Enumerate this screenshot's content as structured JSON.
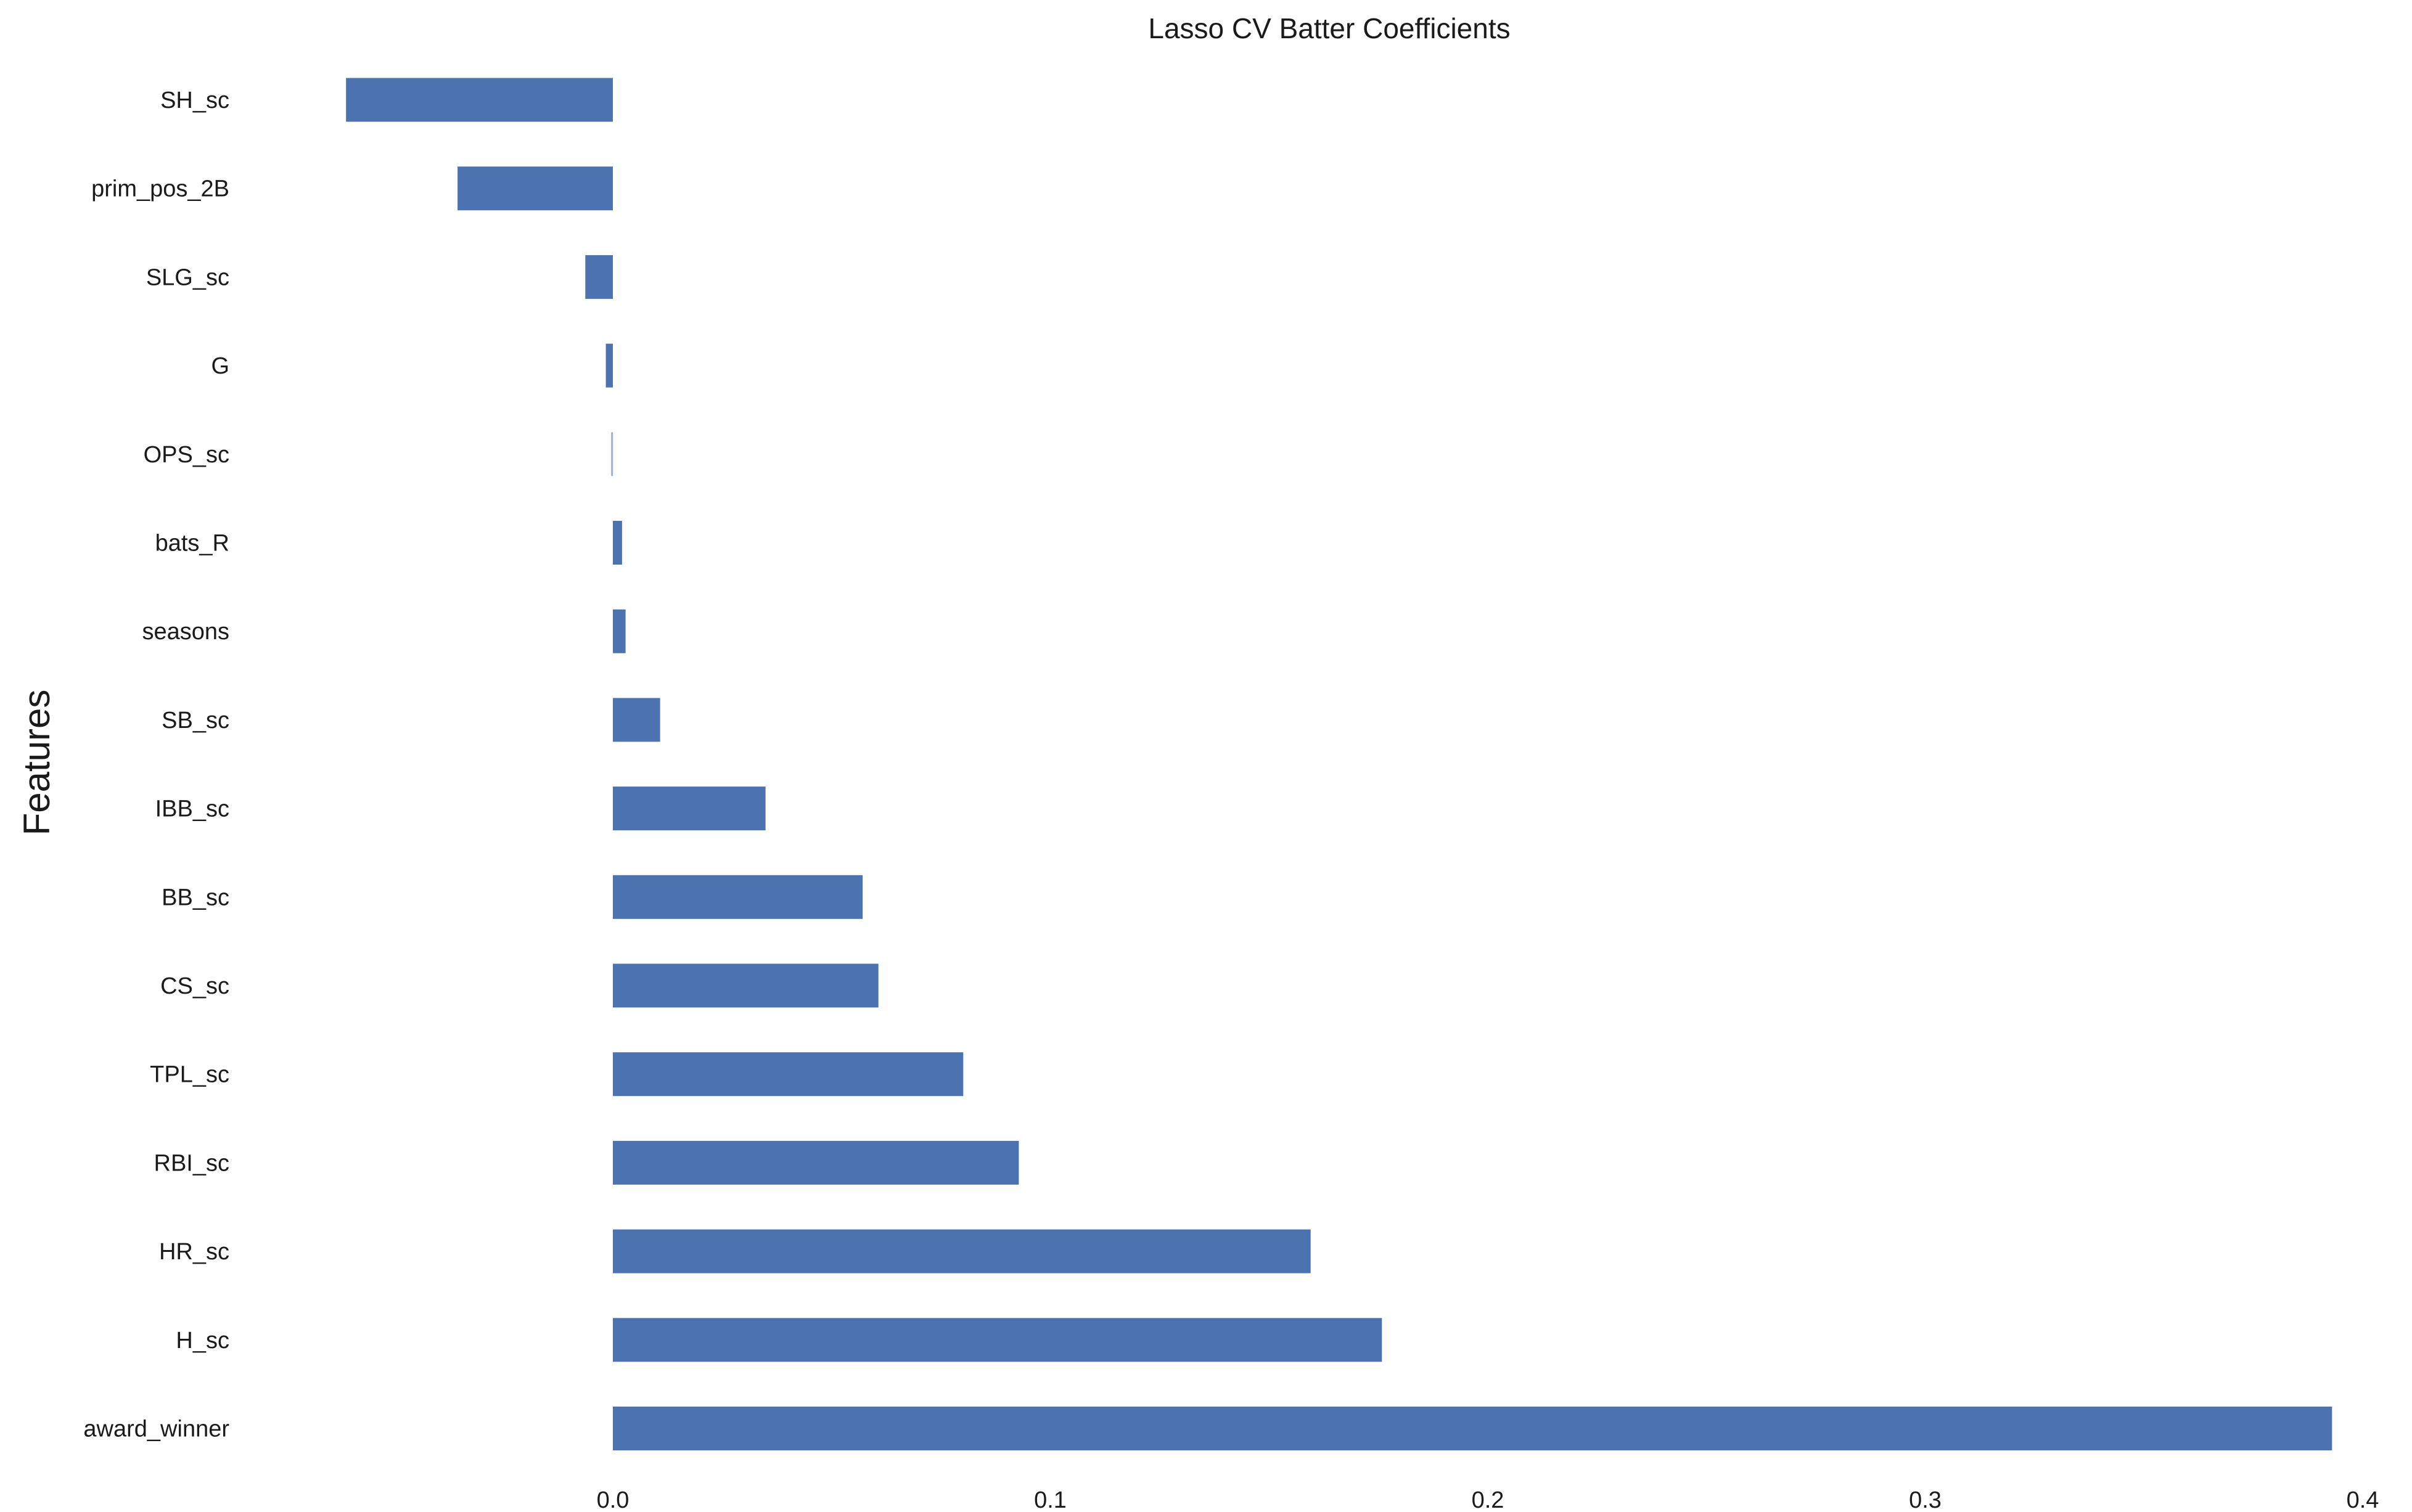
{
  "chart_data": {
    "type": "bar",
    "orientation": "horizontal",
    "title": "Lasso CV Batter Coefficients",
    "xlabel": "",
    "ylabel": "Features",
    "xlim": [
      -0.061,
      0.4
    ],
    "xticks": [
      "0.0",
      "0.1",
      "0.2",
      "0.3",
      "0.4"
    ],
    "xtick_values": [
      0.0,
      0.1,
      0.2,
      0.3,
      0.4
    ],
    "grid": false,
    "bar_color": "#4c72b0",
    "categories": [
      "SH_sc",
      "prim_pos_2B",
      "SLG_sc",
      "G",
      "OPS_sc",
      "bats_R",
      "seasons",
      "SB_sc",
      "IBB_sc",
      "BB_sc",
      "CS_sc",
      "TPL_sc",
      "RBI_sc",
      "HR_sc",
      "H_sc",
      "award_winner"
    ],
    "values": [
      -0.061,
      -0.0355,
      -0.0063,
      -0.0016,
      -0.0004,
      0.0021,
      0.0029,
      0.0108,
      0.0349,
      0.0571,
      0.0607,
      0.0801,
      0.0928,
      0.1595,
      0.1758,
      0.393
    ]
  }
}
